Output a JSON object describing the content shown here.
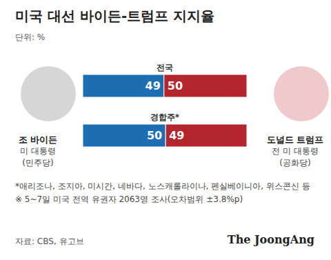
{
  "chart_data": {
    "type": "bar",
    "orientation": "horizontal",
    "stacked": true,
    "data_labels": true,
    "tick_labels": false,
    "title": "미국 대선 바이든-트럼프 지지율",
    "subtitle": "단위: %",
    "categories": [
      "전국",
      "경합주*"
    ],
    "xlim": [
      0,
      99
    ],
    "series": [
      {
        "name": "조 바이든",
        "note": "미 대통령",
        "party": "(민주당)",
        "color": "#1d6db3",
        "values": [
          49,
          50
        ]
      },
      {
        "name": "도널드 트럼프",
        "note": "전 미 대통령",
        "party": "(공화당)",
        "color": "#b3262e",
        "values": [
          50,
          49
        ]
      }
    ],
    "notes": [
      "*애리조나, 조지아, 미시간, 네바다, 노스캐롤라이나, 펜실베이니아, 위스콘신 등",
      "※ 5~7일 미국 전역 유권자 2063명 조사(오차범위 ±3.8%p)"
    ],
    "source": "자료: CBS, 유고브",
    "credit": "The JoongAng"
  }
}
